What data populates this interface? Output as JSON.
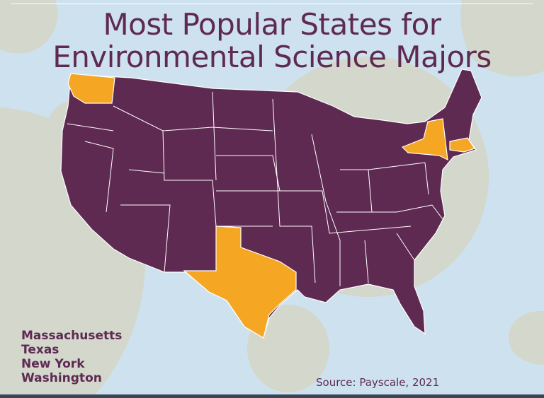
{
  "title_lines": [
    "Most Popular States for",
    "Environmental Science Majors"
  ],
  "top_states": [
    "Massachusetts",
    "Texas",
    "New York",
    "Washington"
  ],
  "source": "Source: Payscale, 2021",
  "colors": {
    "background": "#cde2ee",
    "circles": "#d3d7cc",
    "states": "#5f2a52",
    "highlight": "#f5a623",
    "borders": "#ffffff"
  },
  "highlighted_states": [
    "Washington",
    "Texas",
    "New York",
    "Massachusetts"
  ]
}
